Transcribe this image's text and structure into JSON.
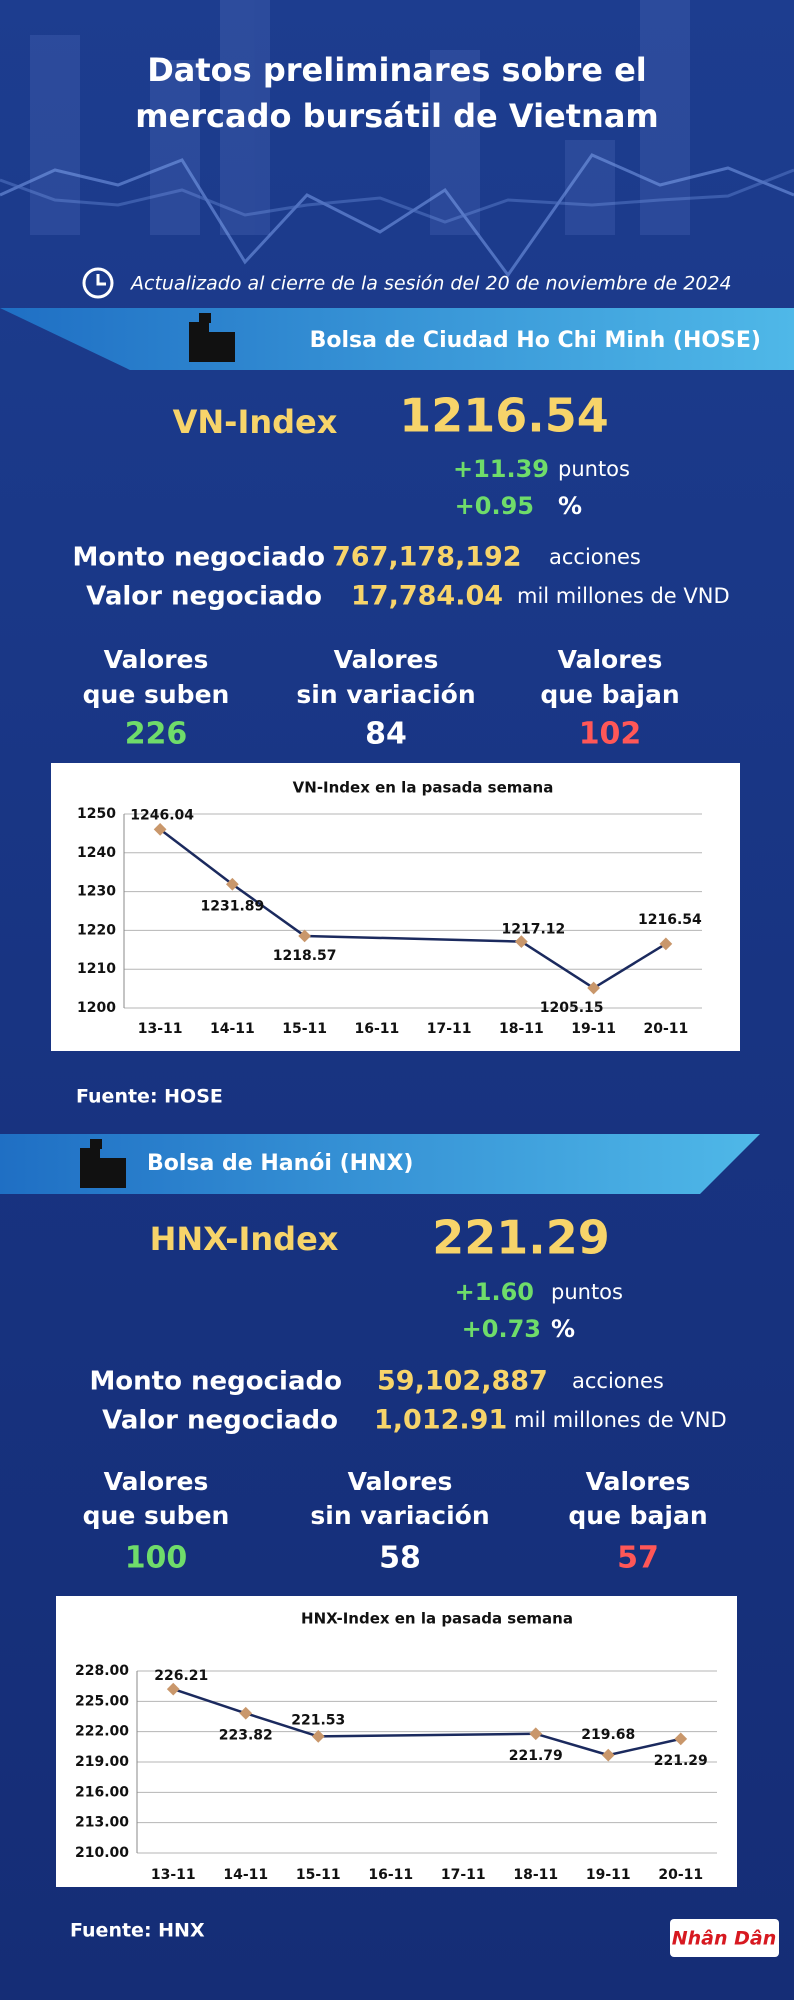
{
  "header": {
    "title": [
      "Datos preliminares sobre el",
      "mercado bursátil de Vietnam"
    ],
    "updated": "Actualizado al cierre de la sesión del 20 de noviembre de 2024"
  },
  "sections": [
    {
      "exchange": "Bolsa de Ciudad Ho Chi Minh (HOSE)",
      "index_name": "VN-Index",
      "index_value": "1216.54",
      "change_points": "+11.39",
      "points_unit": "puntos",
      "change_percent": "+0.95",
      "percent_unit": "%",
      "volume_label": "Monto negociado",
      "volume": "767,178,192",
      "volume_unit": "acciones",
      "value_label": "Valor negociado",
      "value": "17,784.04",
      "value_unit": "mil millones de VND",
      "breadth": [
        {
          "label": [
            "Valores",
            "que suben"
          ],
          "count": "226"
        },
        {
          "label": [
            "Valores",
            "sin variación"
          ],
          "count": "84"
        },
        {
          "label": [
            "Valores",
            "que bajan"
          ],
          "count": "102"
        }
      ],
      "source": "Fuente: HOSE"
    },
    {
      "exchange": "Bolsa de Hanói (HNX)",
      "index_name": "HNX-Index",
      "index_value": "221.29",
      "change_points": "+1.60",
      "points_unit": "puntos",
      "change_percent": "+0.73",
      "percent_unit": "%",
      "volume_label": "Monto negociado",
      "volume": "59,102,887",
      "volume_unit": "acciones",
      "value_label": "Valor negociado",
      "value": "1,012.91",
      "value_unit": "mil millones de VND",
      "breadth": [
        {
          "label": [
            "Valores",
            "que suben"
          ],
          "count": "100"
        },
        {
          "label": [
            "Valores",
            "sin variación"
          ],
          "count": "58"
        },
        {
          "label": [
            "Valores",
            "que bajan"
          ],
          "count": "57"
        }
      ],
      "source": "Fuente:  HNX"
    }
  ],
  "chart_data": [
    {
      "type": "line",
      "title": "VN-Index en la pasada semana",
      "categories": [
        "13-11",
        "14-11",
        "15-11",
        "16-11",
        "17-11",
        "18-11",
        "19-11",
        "20-11"
      ],
      "values": [
        1246.04,
        1231.89,
        1218.57,
        null,
        null,
        1217.12,
        1205.15,
        1216.54
      ],
      "color": "#1b2a5e",
      "marker_color": "#c9976b",
      "ylim": [
        1200,
        1250
      ],
      "yticks": [
        1200,
        1210,
        1220,
        1230,
        1240,
        1250
      ],
      "grid": true
    },
    {
      "type": "line",
      "title": "HNX-Index en la pasada semana",
      "categories": [
        "13-11",
        "14-11",
        "15-11",
        "16-11",
        "17-11",
        "18-11",
        "19-11",
        "20-11"
      ],
      "values": [
        226.21,
        223.82,
        221.53,
        null,
        null,
        221.79,
        219.68,
        221.29
      ],
      "color": "#1b2a5e",
      "marker_color": "#c9976b",
      "ylim": [
        210,
        228
      ],
      "yticks": [
        {
          "value": 210,
          "label": "210.00"
        },
        {
          "value": 213,
          "label": "213.00"
        },
        {
          "value": 216,
          "label": "216.00"
        },
        {
          "value": 219,
          "label": "219.00"
        },
        {
          "value": 222,
          "label": "222.00"
        },
        {
          "value": 225,
          "label": "225.00"
        },
        {
          "value": 228,
          "label": "228.00"
        }
      ],
      "grid": true
    }
  ],
  "logo": "Nhân Dân"
}
